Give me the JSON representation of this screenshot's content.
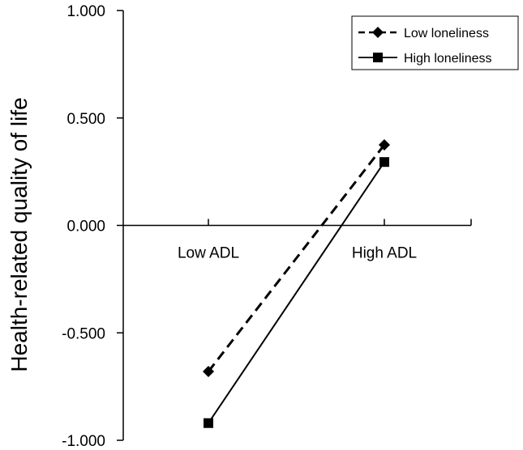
{
  "chart_data": {
    "type": "line",
    "title": "",
    "xlabel": "",
    "ylabel": "Health-related quality of life",
    "categories": [
      "Low ADL",
      "High ADL"
    ],
    "yticks": [
      "1.000",
      "0.500",
      "0.000",
      "-0.500",
      "-1.000"
    ],
    "ytick_values": [
      1.0,
      0.5,
      0.0,
      -0.5,
      -1.0
    ],
    "ylim": [
      -1.0,
      1.0
    ],
    "grid": false,
    "legend_position": "top-right",
    "series": [
      {
        "name": "Low loneliness",
        "values": [
          -0.68,
          0.375
        ],
        "line_style": "dashed",
        "marker": "diamond",
        "color": "#000000"
      },
      {
        "name": "High loneliness",
        "values": [
          -0.92,
          0.295
        ],
        "line_style": "solid",
        "marker": "square",
        "color": "#000000"
      }
    ]
  }
}
